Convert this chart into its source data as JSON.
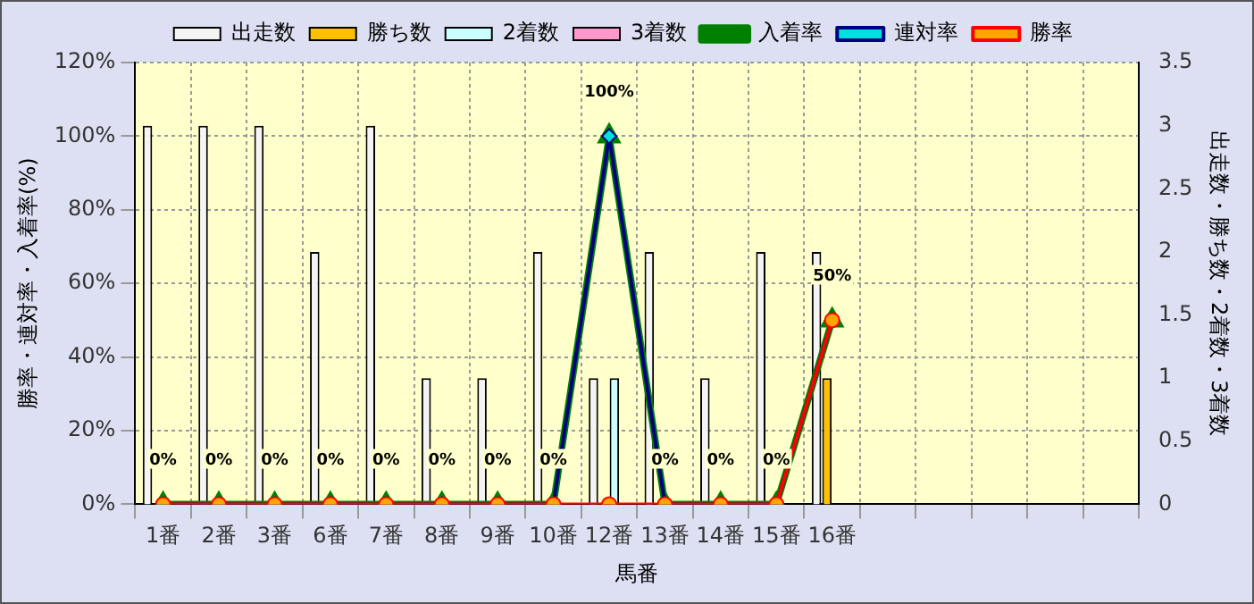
{
  "chart_data": {
    "type": "bar",
    "xlabel": "馬番",
    "ylabel": "勝率・連対率・入着率(%)",
    "y2label": "出走数・勝ち数・2着数・3着数",
    "categories": [
      "1番",
      "2番",
      "3番",
      "6番",
      "7番",
      "8番",
      "9番",
      "10番",
      "12番",
      "13番",
      "14番",
      "15番",
      "16番",
      null,
      null,
      null,
      null,
      null
    ],
    "series": [
      {
        "name": "出走数",
        "axis": "y2",
        "color": "#f4f4f4",
        "values": [
          3,
          3,
          3,
          2,
          3,
          1,
          1,
          2,
          1,
          2,
          1,
          2,
          2,
          null,
          null,
          null,
          null,
          null
        ]
      },
      {
        "name": "勝ち数",
        "axis": "y2",
        "color": "#ffc000",
        "values": [
          0,
          0,
          0,
          0,
          0,
          0,
          0,
          0,
          0,
          0,
          0,
          0,
          1,
          null,
          null,
          null,
          null,
          null
        ]
      },
      {
        "name": "2着数",
        "axis": "y2",
        "color": "#ccffff",
        "values": [
          0,
          0,
          0,
          0,
          0,
          0,
          0,
          0,
          1,
          0,
          0,
          0,
          0,
          null,
          null,
          null,
          null,
          null
        ]
      },
      {
        "name": "3着数",
        "axis": "y2",
        "color": "#ff99cc",
        "values": [
          0,
          0,
          0,
          0,
          0,
          0,
          0,
          0,
          0,
          0,
          0,
          0,
          0,
          null,
          null,
          null,
          null,
          null
        ]
      },
      {
        "name": "入着率",
        "type": "line",
        "color": "#008000",
        "marker": "triangle",
        "values": [
          0,
          0,
          0,
          0,
          0,
          0,
          0,
          0,
          100,
          0,
          0,
          0,
          50,
          null,
          null,
          null,
          null,
          null
        ],
        "value_labels": [
          "0%",
          "0%",
          "0%",
          "0%",
          "0%",
          "0%",
          "0%",
          "0%",
          "100%",
          "0%",
          "0%",
          "0%",
          "50%",
          null,
          null,
          null,
          null,
          null
        ]
      },
      {
        "name": "連対率",
        "type": "line",
        "color": "#000080",
        "marker": "diamond",
        "values": [
          0,
          0,
          0,
          0,
          0,
          0,
          0,
          0,
          100,
          0,
          0,
          0,
          50,
          null,
          null,
          null,
          null,
          null
        ]
      },
      {
        "name": "勝率",
        "type": "line",
        "color": "#ff0000",
        "marker": "circle",
        "values": [
          0,
          0,
          0,
          0,
          0,
          0,
          0,
          0,
          0,
          0,
          0,
          0,
          50,
          null,
          null,
          null,
          null,
          null
        ]
      }
    ],
    "ylim": [
      0,
      120
    ],
    "yticks": [
      {
        "value": 0,
        "label": "0%"
      },
      {
        "value": 20,
        "label": "20%"
      },
      {
        "value": 40,
        "label": "40%"
      },
      {
        "value": 60,
        "label": "60%"
      },
      {
        "value": 80,
        "label": "80%"
      },
      {
        "value": 100,
        "label": "100%"
      },
      {
        "value": 120,
        "label": "120%"
      }
    ],
    "y2lim": [
      0,
      3.5
    ],
    "y2ticks": [
      0,
      0.5,
      1,
      1.5,
      2,
      2.5,
      3,
      3.5
    ],
    "grid": true,
    "legend": "top"
  }
}
